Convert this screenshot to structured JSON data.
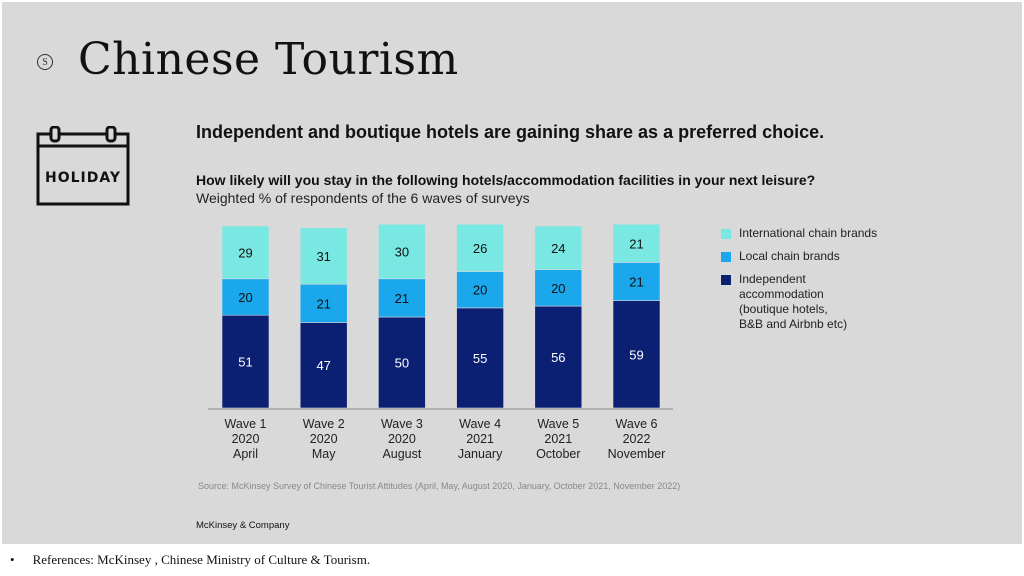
{
  "slide": {
    "title": "Chinese Tourism",
    "logo_letter": "S",
    "icon_text": "HOLIDAY",
    "headline": "Independent and boutique hotels are gaining share as a preferred choice.",
    "company": "McKinsey & Company",
    "reference_bullet": "•",
    "reference": "References: McKinsey , Chinese Ministry of Culture & Tourism."
  },
  "chart_data": {
    "type": "bar",
    "stacked": true,
    "title": "How likely will you stay in the following hotels/accommodation facilities in your next leisure?",
    "subtitle": "Weighted % of respondents of the 6 waves of surveys",
    "categories": [
      [
        "Wave 1",
        "2020",
        "April"
      ],
      [
        "Wave 2",
        "2020",
        "May"
      ],
      [
        "Wave 3",
        "2020",
        "August"
      ],
      [
        "Wave 4",
        "2021",
        "January"
      ],
      [
        "Wave 5",
        "2021",
        "October"
      ],
      [
        "Wave 6",
        "2022",
        "November"
      ]
    ],
    "series": [
      {
        "name": "Independent accommodation (boutique hotels, B&B and Airbnb etc)",
        "legend_lines": "Independent\naccommodation\n(boutique hotels,\nB&B and Airbnb etc)",
        "color": "#0b1f73",
        "label_color": "#ffffff",
        "values": [
          51,
          47,
          50,
          55,
          56,
          59
        ]
      },
      {
        "name": "Local chain brands",
        "legend_lines": "Local chain brands",
        "color": "#1aa7ec",
        "label_color": "#111111",
        "values": [
          20,
          21,
          21,
          20,
          20,
          21
        ]
      },
      {
        "name": "International chain brands",
        "legend_lines": "International chain brands",
        "color": "#7ae8e2",
        "label_color": "#111111",
        "values": [
          29,
          31,
          30,
          26,
          24,
          21
        ]
      }
    ],
    "legend_order": [
      2,
      1,
      0
    ],
    "ylim": [
      0,
      100
    ],
    "legend_position": "right",
    "source": "Source: McKinsey Survey of Chinese Tourist Attitudes (April, May, August 2020, January, October 2021, November 2022)"
  }
}
